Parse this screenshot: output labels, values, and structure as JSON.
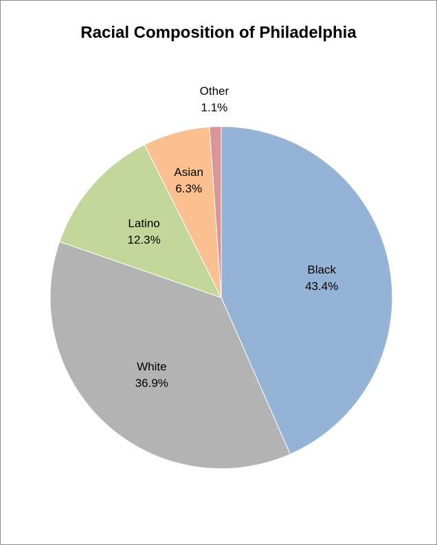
{
  "chart_data": {
    "type": "pie",
    "title": "Racial Composition of Philadelphia",
    "slices": [
      {
        "label": "Black",
        "value": 43.4,
        "value_label": "43.4%",
        "color": "#95b3d7"
      },
      {
        "label": "White",
        "value": 36.9,
        "value_label": "36.9%",
        "color": "#b3b3b3"
      },
      {
        "label": "Latino",
        "value": 12.3,
        "value_label": "12.3%",
        "color": "#c4d79b"
      },
      {
        "label": "Asian",
        "value": 6.3,
        "value_label": "6.3%",
        "color": "#fac090"
      },
      {
        "label": "Other",
        "value": 1.1,
        "value_label": "1.1%",
        "color": "#d99694"
      }
    ],
    "start_angle": "12 o'clock",
    "direction": "clockwise",
    "legend": "none",
    "label_position": "inside"
  }
}
